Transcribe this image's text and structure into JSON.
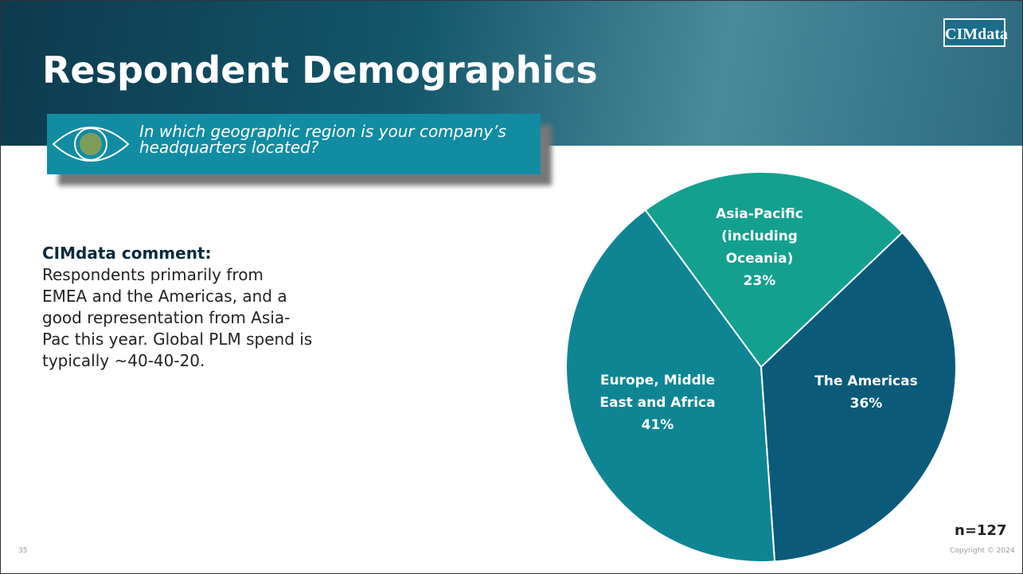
{
  "header": {
    "title": "Respondent Demographics",
    "logo": "CIMdata",
    "question": "In which geographic region is your company’s headquarters located?"
  },
  "comment": {
    "heading": "CIMdata comment:",
    "body": "Respondents primarily from EMEA and the Americas, and a good representation from Asia-Pac this year. Global PLM spend is typically ~40-40-20."
  },
  "footer": {
    "sample": "n=127",
    "page": "35",
    "copyright": "Copyright © 2024"
  },
  "chart_data": {
    "type": "pie",
    "categories": [
      "Asia-Pacific (including Oceania)",
      "The Americas",
      "Europe, Middle East and Africa"
    ],
    "values": [
      23,
      36,
      41
    ],
    "value_labels": [
      "23%",
      "36%",
      "41%"
    ],
    "colors": [
      "#14a08e",
      "#0b5a79",
      "#0f8593"
    ]
  }
}
